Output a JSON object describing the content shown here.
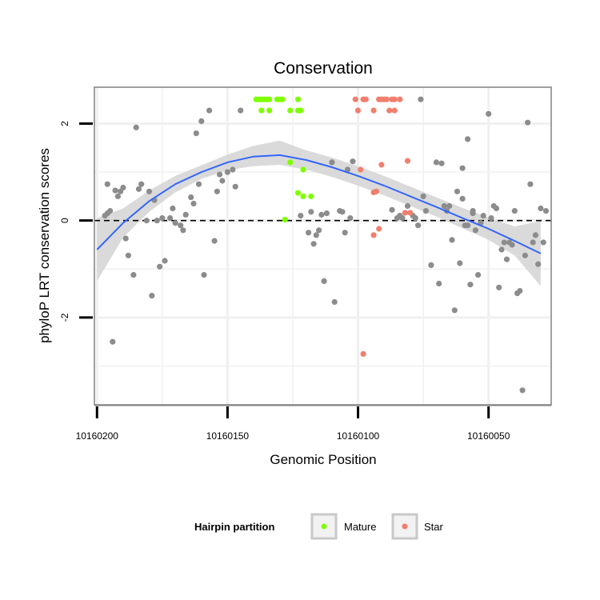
{
  "chart_data": {
    "type": "scatter",
    "title": "Conservation",
    "xlabel": "Genomic Position",
    "ylabel": "phyloP LRT conservation scores",
    "x_reversed": true,
    "xlim": [
      10160026,
      10160201
    ],
    "ylim": [
      -3.8,
      2.75
    ],
    "x_ticks": [
      10160200,
      10160150,
      10160100,
      10160050
    ],
    "x_tick_labels": [
      "10160200",
      "10160150",
      "10160100",
      "10160050"
    ],
    "y_ticks": [
      2,
      0,
      -2
    ],
    "y_tick_labels": [
      "2",
      "0",
      "-2"
    ],
    "reference_line_y": 0,
    "grid": true,
    "legend": {
      "title": "Hairpin partition",
      "position": "bottom",
      "entries": [
        {
          "label": "Mature",
          "color": "#7fff00"
        },
        {
          "label": "Star",
          "color": "#f07f6e"
        }
      ]
    },
    "colors": {
      "Other": "#8c8c8c",
      "Mature": "#7fff00",
      "Star": "#f07f6e",
      "smooth_line": "#3366ff",
      "ribbon": "#d3d3d3",
      "panel_border": "#808080",
      "grid": "#f0f0f0"
    },
    "series": [
      {
        "name": "Mature",
        "points": [
          [
            10160139,
            2.5
          ],
          [
            10160138,
            2.5
          ],
          [
            10160137,
            2.5
          ],
          [
            10160136,
            2.5
          ],
          [
            10160135,
            2.5
          ],
          [
            10160134,
            2.5
          ],
          [
            10160131,
            2.5
          ],
          [
            10160130,
            2.5
          ],
          [
            10160129,
            2.5
          ],
          [
            10160123,
            2.5
          ],
          [
            10160137,
            2.27
          ],
          [
            10160134,
            2.27
          ],
          [
            10160126,
            2.27
          ],
          [
            10160123,
            2.27
          ],
          [
            10160122,
            2.27
          ],
          [
            10160126,
            1.2
          ],
          [
            10160121,
            1.05
          ],
          [
            10160123,
            0.57
          ],
          [
            10160121,
            0.5
          ],
          [
            10160118,
            0.5
          ],
          [
            10160128,
            0.02
          ]
        ]
      },
      {
        "name": "Star",
        "points": [
          [
            10160101,
            2.5
          ],
          [
            10160098,
            2.5
          ],
          [
            10160097,
            2.5
          ],
          [
            10160092,
            2.5
          ],
          [
            10160091,
            2.5
          ],
          [
            10160090,
            2.5
          ],
          [
            10160089,
            2.5
          ],
          [
            10160087,
            2.5
          ],
          [
            10160086,
            2.5
          ],
          [
            10160084,
            2.5
          ],
          [
            10160100,
            2.27
          ],
          [
            10160094,
            2.27
          ],
          [
            10160088,
            2.27
          ],
          [
            10160086,
            2.27
          ],
          [
            10160081,
            1.23
          ],
          [
            10160091,
            1.15
          ],
          [
            10160099,
            1.05
          ],
          [
            10160093,
            0.6
          ],
          [
            10160094,
            0.58
          ],
          [
            10160082,
            0.16
          ],
          [
            10160080,
            0.16
          ],
          [
            10160094,
            -0.3
          ],
          [
            10160092,
            -0.17
          ],
          [
            10160098,
            -2.75
          ]
        ]
      },
      {
        "name": "Other",
        "points": [
          [
            10160196,
            0.75
          ],
          [
            10160195,
            0.2
          ],
          [
            10160193,
            0.62
          ],
          [
            10160192,
            0.5
          ],
          [
            10160191,
            0.6
          ],
          [
            10160190,
            0.68
          ],
          [
            10160194,
            -2.5
          ],
          [
            10160189,
            -0.37
          ],
          [
            10160188,
            -0.72
          ],
          [
            10160186,
            -1.12
          ],
          [
            10160185,
            1.92
          ],
          [
            10160184,
            0.65
          ],
          [
            10160183,
            0.75
          ],
          [
            10160181,
            0.0
          ],
          [
            10160180,
            0.6
          ],
          [
            10160179,
            -1.55
          ],
          [
            10160178,
            0.42
          ],
          [
            10160177,
            0.0
          ],
          [
            10160175,
            0.05
          ],
          [
            10160174,
            -0.83
          ],
          [
            10160172,
            0.05
          ],
          [
            10160171,
            0.25
          ],
          [
            10160170,
            -0.05
          ],
          [
            10160168,
            -0.1
          ],
          [
            10160166,
            0.12
          ],
          [
            10160164,
            0.48
          ],
          [
            10160162,
            1.8
          ],
          [
            10160161,
            0.75
          ],
          [
            10160160,
            2.05
          ],
          [
            10160159,
            -1.12
          ],
          [
            10160157,
            2.27
          ],
          [
            10160155,
            -0.42
          ],
          [
            10160152,
            0.82
          ],
          [
            10160148,
            1.05
          ],
          [
            10160145,
            2.27
          ],
          [
            10160176,
            -0.95
          ],
          [
            10160167,
            -0.2
          ],
          [
            10160163,
            0.35
          ],
          [
            10160196,
            0.15
          ],
          [
            10160197,
            0.1
          ],
          [
            10160119,
            -0.25
          ],
          [
            10160118,
            0.18
          ],
          [
            10160117,
            -0.48
          ],
          [
            10160115,
            -0.2
          ],
          [
            10160113,
            -1.25
          ],
          [
            10160112,
            0.15
          ],
          [
            10160110,
            1.2
          ],
          [
            10160109,
            -1.68
          ],
          [
            10160107,
            0.2
          ],
          [
            10160106,
            0.18
          ],
          [
            10160105,
            -0.25
          ],
          [
            10160104,
            1.05
          ],
          [
            10160103,
            0.05
          ],
          [
            10160102,
            1.22
          ],
          [
            10160087,
            0.22
          ],
          [
            10160085,
            0.05
          ],
          [
            10160084,
            0.1
          ],
          [
            10160083,
            0.05
          ],
          [
            10160081,
            0.3
          ],
          [
            10160079,
            0.1
          ],
          [
            10160078,
            0.05
          ],
          [
            10160077,
            -0.1
          ],
          [
            10160075,
            0.5
          ],
          [
            10160072,
            -0.92
          ],
          [
            10160070,
            1.2
          ],
          [
            10160069,
            -1.3
          ],
          [
            10160068,
            1.18
          ],
          [
            10160066,
            0.2
          ],
          [
            10160065,
            0.3
          ],
          [
            10160064,
            -0.4
          ],
          [
            10160063,
            -1.85
          ],
          [
            10160062,
            0.6
          ],
          [
            10160061,
            -0.88
          ],
          [
            10160060,
            0.45
          ],
          [
            10160058,
            -0.1
          ],
          [
            10160057,
            -1.32
          ],
          [
            10160056,
            0.15
          ],
          [
            10160055,
            -0.2
          ],
          [
            10160054,
            -1.12
          ],
          [
            10160053,
            -0.05
          ],
          [
            10160052,
            0.1
          ],
          [
            10160050,
            2.2
          ],
          [
            10160048,
            0.3
          ],
          [
            10160047,
            0.25
          ],
          [
            10160046,
            -1.38
          ],
          [
            10160044,
            -0.45
          ],
          [
            10160043,
            -0.8
          ],
          [
            10160042,
            -0.45
          ],
          [
            10160040,
            0.2
          ],
          [
            10160039,
            -1.5
          ],
          [
            10160038,
            -1.45
          ],
          [
            10160036,
            -0.72
          ],
          [
            10160035,
            2.02
          ],
          [
            10160034,
            0.75
          ],
          [
            10160033,
            -0.45
          ],
          [
            10160031,
            -0.9
          ],
          [
            10160030,
            0.25
          ],
          [
            10160029,
            -0.45
          ],
          [
            10160028,
            0.2
          ],
          [
            10160037,
            -3.5
          ],
          [
            10160076,
            2.5
          ],
          [
            10160058,
            1.68
          ],
          [
            10160060,
            1.08
          ],
          [
            10160056,
            0.2
          ],
          [
            10160122,
            0.1
          ],
          [
            10160116,
            -0.3
          ],
          [
            10160114,
            0.12
          ],
          [
            10160045,
            -0.6
          ],
          [
            10160041,
            -0.5
          ],
          [
            10160032,
            -0.3
          ],
          [
            10160067,
            0.3
          ],
          [
            10160074,
            0.2
          ],
          [
            10160059,
            -0.1
          ],
          [
            10160049,
            0.05
          ],
          [
            10160147,
            0.7
          ],
          [
            10160150,
            1.0
          ],
          [
            10160153,
            0.95
          ],
          [
            10160154,
            0.6
          ]
        ]
      }
    ],
    "smooth": {
      "x": [
        10160200,
        10160190,
        10160180,
        10160170,
        10160160,
        10160150,
        10160140,
        10160130,
        10160120,
        10160110,
        10160100,
        10160090,
        10160080,
        10160070,
        10160060,
        10160050,
        10160040,
        10160030
      ],
      "y": [
        -0.6,
        -0.05,
        0.4,
        0.75,
        1.0,
        1.2,
        1.32,
        1.35,
        1.25,
        1.1,
        0.92,
        0.72,
        0.5,
        0.28,
        0.05,
        -0.17,
        -0.42,
        -0.68
      ],
      "ymin": [
        -1.25,
        -0.35,
        0.18,
        0.58,
        0.86,
        1.04,
        1.12,
        1.15,
        1.05,
        0.9,
        0.72,
        0.52,
        0.3,
        0.08,
        -0.16,
        -0.4,
        -0.72,
        -1.35
      ],
      "ymax": [
        0.05,
        0.25,
        0.62,
        0.92,
        1.14,
        1.36,
        1.54,
        1.65,
        1.45,
        1.3,
        1.12,
        0.92,
        0.7,
        0.48,
        0.26,
        0.06,
        -0.12,
        -0.01
      ]
    }
  }
}
